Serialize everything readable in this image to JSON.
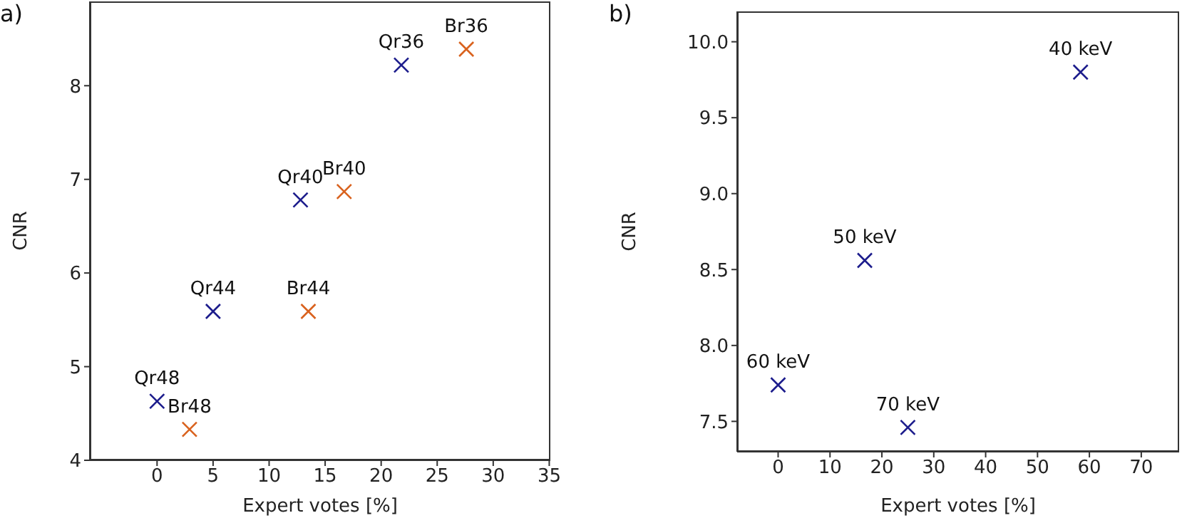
{
  "chart_data": [
    {
      "type": "scatter",
      "title": "a)",
      "xlabel": "Expert votes [%]",
      "ylabel": "CNR",
      "marker": "cross",
      "grid": false,
      "legend": false,
      "xlim": [
        -6,
        35.1
      ],
      "xticks": [
        0,
        5,
        10,
        15,
        20,
        25,
        30,
        35
      ],
      "ylim": [
        4,
        8.9
      ],
      "yticks": [
        4,
        5,
        6,
        7,
        8
      ],
      "series": [
        {
          "color": "#1c1c8c",
          "x": [
            21.8,
            12.8,
            5.0,
            0
          ],
          "values": [
            8.22,
            6.78,
            5.59,
            4.63
          ]
        },
        {
          "color": "#d9621e",
          "x": [
            27.6,
            16.7,
            13.5,
            2.9
          ],
          "values": [
            8.39,
            6.87,
            5.59,
            4.33
          ]
        }
      ],
      "annotations": [
        {
          "text": "Qr36",
          "x": 21.8,
          "y": 8.22
        },
        {
          "text": "Br36",
          "x": 27.6,
          "y": 8.39
        },
        {
          "text": "Qr40",
          "x": 12.8,
          "y": 6.78
        },
        {
          "text": "Br40",
          "x": 16.7,
          "y": 6.87
        },
        {
          "text": "Qr44",
          "x": 5.0,
          "y": 5.59
        },
        {
          "text": "Br44",
          "x": 13.5,
          "y": 5.59
        },
        {
          "text": "Qr48",
          "x": 0,
          "y": 4.63
        },
        {
          "text": "Br48",
          "x": 2.9,
          "y": 4.33
        }
      ]
    },
    {
      "type": "scatter",
      "title": "b)",
      "xlabel": "Expert votes [%]",
      "ylabel": "CNR",
      "marker": "cross",
      "grid": false,
      "legend": false,
      "xlim": [
        -7.9,
        77.3
      ],
      "xticks": [
        0,
        10,
        20,
        30,
        40,
        50,
        60,
        70
      ],
      "ylim": [
        7.3,
        10.2
      ],
      "yticks": [
        {
          "value": 7.5,
          "label": "7.5"
        },
        {
          "value": 8,
          "label": "8.0"
        },
        {
          "value": 8.5,
          "label": "8.5"
        },
        {
          "value": 9,
          "label": "9.0"
        },
        {
          "value": 9.5,
          "label": "9.5"
        },
        {
          "value": 10,
          "label": "10.0"
        }
      ],
      "series": [
        {
          "color": "#1c1c8c",
          "x": [
            58.3,
            16.7,
            0,
            25.0
          ],
          "values": [
            9.8,
            8.56,
            7.74,
            7.46
          ]
        }
      ],
      "annotations": [
        {
          "text": "40 keV",
          "x": 58.3,
          "y": 9.8
        },
        {
          "text": "50 keV",
          "x": 16.7,
          "y": 8.56
        },
        {
          "text": "60 keV",
          "x": 0,
          "y": 7.74
        },
        {
          "text": "70 keV",
          "x": 25.0,
          "y": 7.46
        }
      ]
    }
  ]
}
